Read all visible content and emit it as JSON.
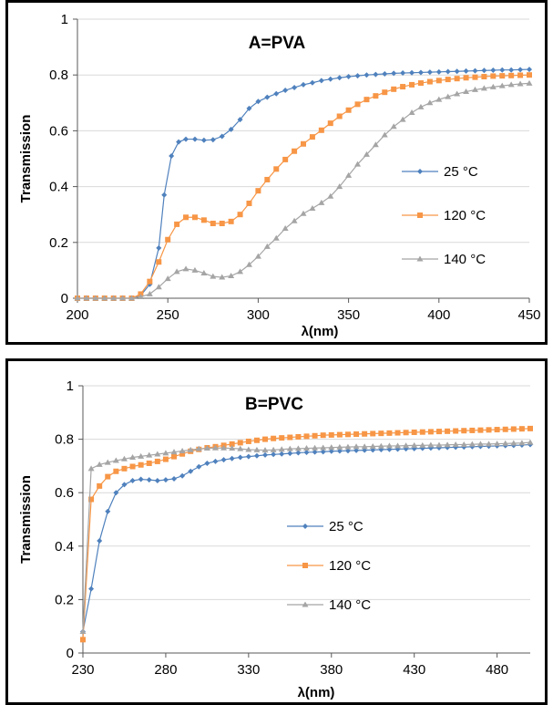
{
  "chart_data": [
    {
      "type": "line",
      "title": "A=PVA",
      "xlabel": "λ(nm)",
      "ylabel": "Transmission",
      "xlim": [
        200,
        450
      ],
      "ylim": [
        0,
        1
      ],
      "xticks": [
        200,
        250,
        300,
        350,
        400,
        450
      ],
      "yticks": [
        0,
        0.2,
        0.4,
        0.6,
        0.8,
        1
      ],
      "ytick_labels": [
        "0",
        "0.2",
        "0.4",
        "0.6",
        "0.8",
        "1"
      ],
      "grid": "horizontal",
      "legend": "right",
      "series": [
        {
          "name": "25 °C",
          "color": "#4f81bd",
          "marker": "diamond",
          "x": [
            200,
            205,
            210,
            215,
            220,
            225,
            230,
            235,
            240,
            245,
            248,
            252,
            256,
            260,
            265,
            270,
            275,
            280,
            285,
            290,
            295,
            300,
            305,
            310,
            315,
            320,
            325,
            330,
            335,
            340,
            345,
            350,
            355,
            360,
            365,
            370,
            375,
            380,
            385,
            390,
            395,
            400,
            405,
            410,
            415,
            420,
            425,
            430,
            435,
            440,
            445,
            450
          ],
          "y": [
            0,
            0,
            0,
            0,
            0,
            0,
            0,
            0.01,
            0.05,
            0.18,
            0.37,
            0.51,
            0.56,
            0.57,
            0.57,
            0.566,
            0.568,
            0.58,
            0.605,
            0.64,
            0.68,
            0.705,
            0.72,
            0.733,
            0.745,
            0.755,
            0.765,
            0.772,
            0.78,
            0.785,
            0.79,
            0.794,
            0.797,
            0.8,
            0.802,
            0.804,
            0.806,
            0.807,
            0.808,
            0.809,
            0.81,
            0.811,
            0.812,
            0.813,
            0.814,
            0.815,
            0.816,
            0.817,
            0.818,
            0.818,
            0.819,
            0.82
          ]
        },
        {
          "name": "120 °C",
          "color": "#f79646",
          "marker": "square",
          "x": [
            200,
            205,
            210,
            215,
            220,
            225,
            230,
            235,
            240,
            245,
            250,
            255,
            260,
            265,
            270,
            275,
            280,
            285,
            290,
            295,
            300,
            305,
            310,
            315,
            320,
            325,
            330,
            335,
            340,
            345,
            350,
            355,
            360,
            365,
            370,
            375,
            380,
            385,
            390,
            395,
            400,
            405,
            410,
            415,
            420,
            425,
            430,
            435,
            440,
            445,
            450
          ],
          "y": [
            0,
            0,
            0,
            0,
            0,
            0,
            0,
            0.015,
            0.06,
            0.13,
            0.21,
            0.265,
            0.29,
            0.29,
            0.28,
            0.268,
            0.268,
            0.275,
            0.3,
            0.34,
            0.385,
            0.425,
            0.463,
            0.497,
            0.527,
            0.553,
            0.578,
            0.602,
            0.627,
            0.652,
            0.674,
            0.695,
            0.712,
            0.725,
            0.738,
            0.749,
            0.758,
            0.765,
            0.771,
            0.776,
            0.78,
            0.784,
            0.787,
            0.79,
            0.792,
            0.794,
            0.796,
            0.797,
            0.798,
            0.799,
            0.8
          ]
        },
        {
          "name": "140 °C",
          "color": "#a5a5a5",
          "marker": "triangle",
          "x": [
            200,
            205,
            210,
            215,
            220,
            225,
            230,
            235,
            240,
            245,
            250,
            255,
            260,
            265,
            270,
            275,
            280,
            285,
            290,
            295,
            300,
            305,
            310,
            315,
            320,
            325,
            330,
            335,
            340,
            345,
            350,
            355,
            360,
            365,
            370,
            375,
            380,
            385,
            390,
            395,
            400,
            405,
            410,
            415,
            420,
            425,
            430,
            435,
            440,
            445,
            450
          ],
          "y": [
            0,
            0,
            0,
            0,
            0,
            0,
            0,
            0.005,
            0.015,
            0.04,
            0.07,
            0.095,
            0.105,
            0.1,
            0.09,
            0.078,
            0.075,
            0.08,
            0.095,
            0.12,
            0.15,
            0.185,
            0.215,
            0.25,
            0.277,
            0.303,
            0.322,
            0.342,
            0.365,
            0.4,
            0.44,
            0.48,
            0.515,
            0.55,
            0.585,
            0.615,
            0.64,
            0.665,
            0.685,
            0.7,
            0.712,
            0.722,
            0.732,
            0.74,
            0.747,
            0.752,
            0.757,
            0.761,
            0.765,
            0.768,
            0.77
          ]
        }
      ]
    },
    {
      "type": "line",
      "title": "B=PVC",
      "xlabel": "λ(nm)",
      "ylabel": "Transmission",
      "xlim": [
        230,
        500
      ],
      "ylim": [
        0,
        1
      ],
      "xticks": [
        230,
        280,
        330,
        380,
        430,
        480
      ],
      "yticks": [
        0,
        0.2,
        0.4,
        0.6,
        0.8,
        1
      ],
      "ytick_labels": [
        "0",
        "0.2",
        "0.4",
        "0.6",
        "0.8",
        "1"
      ],
      "grid": "horizontal",
      "legend": "center",
      "series": [
        {
          "name": "25 °C",
          "color": "#4f81bd",
          "marker": "diamond",
          "x": [
            230,
            235,
            240,
            245,
            250,
            255,
            260,
            265,
            270,
            275,
            280,
            285,
            290,
            295,
            300,
            305,
            310,
            315,
            320,
            325,
            330,
            335,
            340,
            345,
            350,
            355,
            360,
            365,
            370,
            375,
            380,
            385,
            390,
            395,
            400,
            405,
            410,
            415,
            420,
            425,
            430,
            435,
            440,
            445,
            450,
            455,
            460,
            465,
            470,
            475,
            480,
            485,
            490,
            495,
            500
          ],
          "y": [
            0.08,
            0.24,
            0.42,
            0.53,
            0.6,
            0.63,
            0.645,
            0.65,
            0.648,
            0.645,
            0.648,
            0.652,
            0.663,
            0.68,
            0.697,
            0.71,
            0.717,
            0.723,
            0.728,
            0.732,
            0.735,
            0.738,
            0.741,
            0.743,
            0.745,
            0.747,
            0.749,
            0.751,
            0.752,
            0.753,
            0.755,
            0.756,
            0.757,
            0.758,
            0.759,
            0.76,
            0.761,
            0.762,
            0.763,
            0.764,
            0.765,
            0.766,
            0.767,
            0.768,
            0.769,
            0.77,
            0.771,
            0.772,
            0.773,
            0.774,
            0.775,
            0.776,
            0.777,
            0.778,
            0.78
          ]
        },
        {
          "name": "120 °C",
          "color": "#f79646",
          "marker": "square",
          "x": [
            230,
            235,
            240,
            245,
            250,
            255,
            260,
            265,
            270,
            275,
            280,
            285,
            290,
            295,
            300,
            305,
            310,
            315,
            320,
            325,
            330,
            335,
            340,
            345,
            350,
            355,
            360,
            365,
            370,
            375,
            380,
            385,
            390,
            395,
            400,
            405,
            410,
            415,
            420,
            425,
            430,
            435,
            440,
            445,
            450,
            455,
            460,
            465,
            470,
            475,
            480,
            485,
            490,
            495,
            500
          ],
          "y": [
            0.05,
            0.575,
            0.625,
            0.66,
            0.68,
            0.69,
            0.698,
            0.704,
            0.71,
            0.717,
            0.725,
            0.735,
            0.745,
            0.755,
            0.762,
            0.768,
            0.772,
            0.777,
            0.782,
            0.787,
            0.792,
            0.796,
            0.8,
            0.803,
            0.805,
            0.807,
            0.809,
            0.811,
            0.813,
            0.815,
            0.816,
            0.817,
            0.818,
            0.819,
            0.82,
            0.821,
            0.822,
            0.823,
            0.824,
            0.825,
            0.826,
            0.827,
            0.828,
            0.829,
            0.83,
            0.831,
            0.832,
            0.833,
            0.834,
            0.835,
            0.836,
            0.837,
            0.838,
            0.839,
            0.84
          ]
        },
        {
          "name": "140 °C",
          "color": "#a5a5a5",
          "marker": "triangle",
          "x": [
            230,
            235,
            240,
            245,
            250,
            255,
            260,
            265,
            270,
            275,
            280,
            285,
            290,
            295,
            300,
            305,
            310,
            315,
            320,
            325,
            330,
            335,
            340,
            345,
            350,
            355,
            360,
            365,
            370,
            375,
            380,
            385,
            390,
            395,
            400,
            405,
            410,
            415,
            420,
            425,
            430,
            435,
            440,
            445,
            450,
            455,
            460,
            465,
            470,
            475,
            480,
            485,
            490,
            495,
            500
          ],
          "y": [
            0.08,
            0.69,
            0.705,
            0.713,
            0.72,
            0.726,
            0.732,
            0.736,
            0.74,
            0.744,
            0.748,
            0.752,
            0.756,
            0.76,
            0.764,
            0.766,
            0.767,
            0.767,
            0.766,
            0.764,
            0.761,
            0.76,
            0.759,
            0.76,
            0.762,
            0.764,
            0.765,
            0.766,
            0.767,
            0.768,
            0.769,
            0.77,
            0.771,
            0.772,
            0.772,
            0.773,
            0.774,
            0.775,
            0.775,
            0.776,
            0.777,
            0.777,
            0.778,
            0.778,
            0.779,
            0.78,
            0.78,
            0.781,
            0.782,
            0.782,
            0.783,
            0.784,
            0.785,
            0.786,
            0.788
          ]
        }
      ]
    }
  ]
}
